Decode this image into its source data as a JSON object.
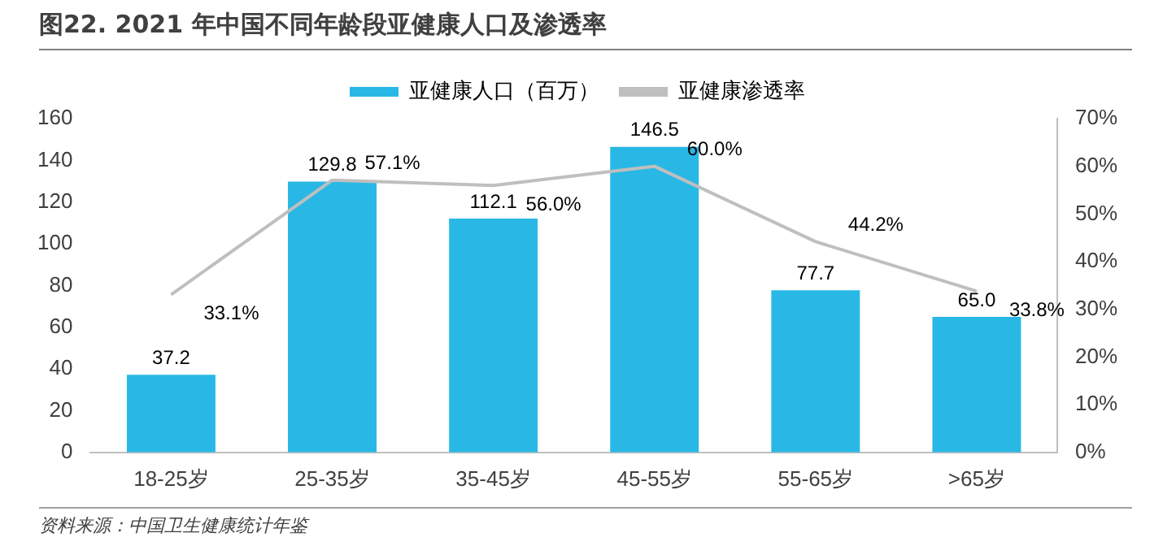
{
  "chart_data": {
    "type": "bar",
    "title": "图22. 2021 年中国不同年龄段亚健康人口及渗透率",
    "categories": [
      "18-25岁",
      "25-35岁",
      "35-45岁",
      "45-55岁",
      "55-65岁",
      ">65岁"
    ],
    "series": [
      {
        "name": "亚健康人口（百万）",
        "color": "#29b8e5",
        "values": [
          37.2,
          129.8,
          112.1,
          146.5,
          77.7,
          65.0
        ],
        "value_labels": [
          "37.2",
          "129.8",
          "112.1",
          "146.5",
          "77.7",
          "65.0"
        ]
      },
      {
        "name": "亚健康渗透率",
        "type": "line",
        "axis": "y2",
        "color": "#bfbfbf",
        "values": [
          33.1,
          57.1,
          56.0,
          60.0,
          44.2,
          33.8
        ],
        "value_labels": [
          "33.1%",
          "57.1%",
          "56.0%",
          "60.0%",
          "44.2%",
          "33.8%"
        ]
      }
    ],
    "ylim": [
      0,
      160
    ],
    "yticks": [
      0,
      20,
      40,
      60,
      80,
      100,
      120,
      140,
      160
    ],
    "y2lim": [
      0,
      70
    ],
    "y2ticks": [
      {
        "value": 0,
        "label": "0%"
      },
      {
        "value": 10,
        "label": "10%"
      },
      {
        "value": 20,
        "label": "20%"
      },
      {
        "value": 30,
        "label": "30%"
      },
      {
        "value": 40,
        "label": "40%"
      },
      {
        "value": 50,
        "label": "50%"
      },
      {
        "value": 60,
        "label": "60%"
      },
      {
        "value": 70,
        "label": "70%"
      }
    ],
    "grid": false,
    "legend": "top",
    "marker": "none",
    "annotations": [
      "资料来源：中国卫生健康统计年鉴"
    ]
  }
}
